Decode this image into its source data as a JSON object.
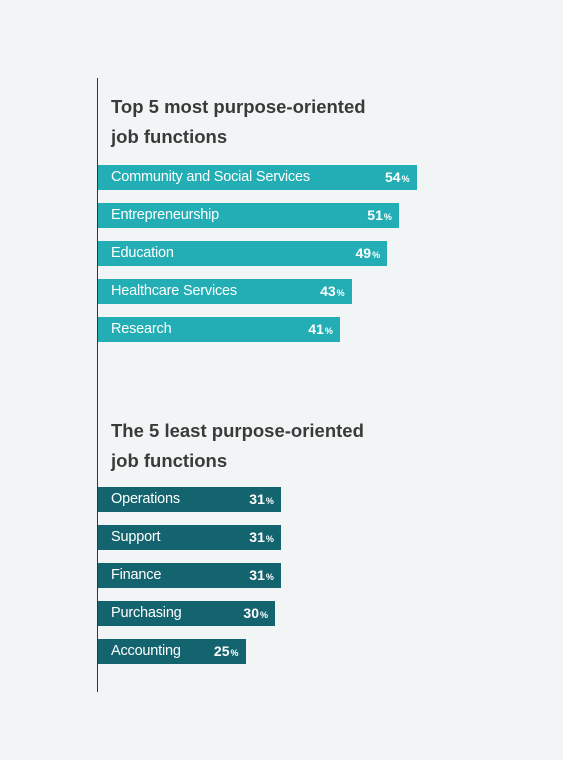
{
  "colors": {
    "top": "#22aeb4",
    "bottom": "#14646f",
    "background": "#f1f5f6"
  },
  "chart_data": [
    {
      "type": "bar",
      "orientation": "horizontal",
      "title_line1": "Top 5 most purpose-oriented",
      "title_line2": "job functions",
      "unit": "%",
      "xlim": [
        0,
        100
      ],
      "categories": [
        "Community and Social Services",
        "Entrepreneurship",
        "Education",
        "Healthcare Services",
        "Research"
      ],
      "values": [
        54,
        51,
        49,
        43,
        41
      ]
    },
    {
      "type": "bar",
      "orientation": "horizontal",
      "title_line1": "The 5 least purpose-oriented",
      "title_line2": "job functions",
      "unit": "%",
      "xlim": [
        0,
        100
      ],
      "categories": [
        "Operations",
        "Support",
        "Finance",
        "Purchasing",
        "Accounting"
      ],
      "values": [
        31,
        31,
        31,
        30,
        25
      ]
    }
  ]
}
